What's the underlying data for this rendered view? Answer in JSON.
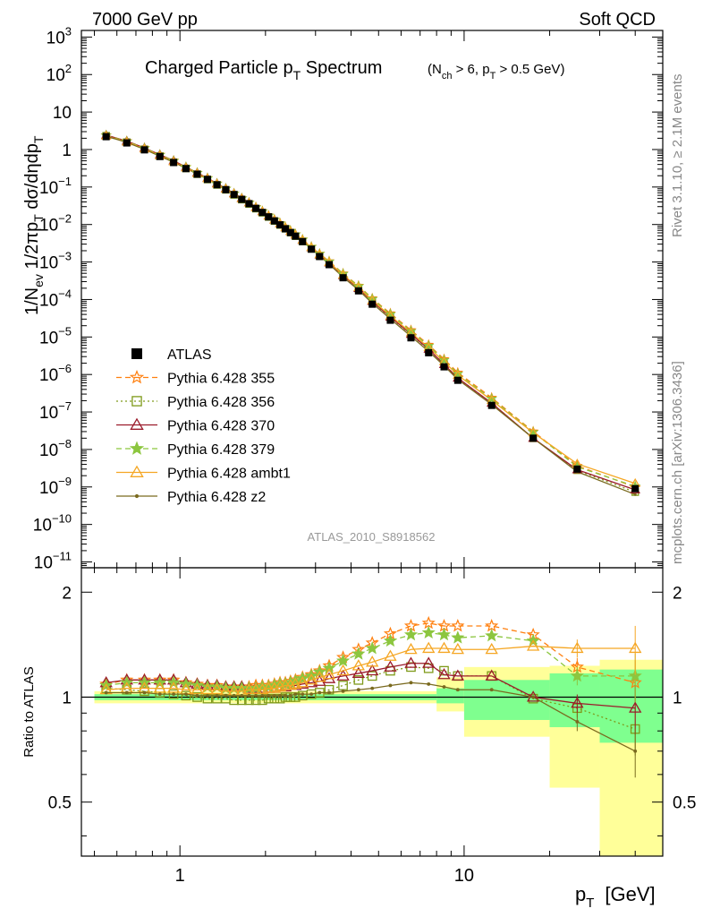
{
  "header": {
    "left": "7000 GeV pp",
    "right": "Soft QCD"
  },
  "side": {
    "rivet": "Rivet 3.1.10, ≥ 2.1M events",
    "mcplots": "mcplots.cern.ch [arXiv:1306.3436]"
  },
  "analysis_id": "ATLAS_2010_S8918562",
  "colors": {
    "ATLAS": "#000000",
    "p355": "#ff7f0e",
    "p356": "#7f9a1a",
    "p370": "#9b1b2b",
    "p379": "#8cc63f",
    "ambt1": "#f5a623",
    "z2": "#7a6a1f",
    "band_yellow": "#ffff99",
    "band_green": "#7fff8f"
  },
  "chart_data": [
    {
      "type": "line",
      "title": "Charged Particle p_T Spectrum",
      "title_main": "Charged Particle p",
      "title_sub": "T",
      "title_tail": " Spectrum",
      "title_cut": "(N_ch > 6, p_T > 0.5 GeV)",
      "ylabel": "1/N_ev 1/2πp_T dσ/dηdp_T",
      "xscale": "log",
      "yscale": "log",
      "xlim": [
        0.45,
        50
      ],
      "ylim": [
        7e-12,
        1500
      ],
      "yticklabels": [
        {
          "v": 1000.0,
          "m": "10",
          "e": "3"
        },
        {
          "v": 100.0,
          "m": "10",
          "e": "2"
        },
        {
          "v": 10.0,
          "m": "10",
          "e": ""
        },
        {
          "v": 1,
          "m": "1",
          "e": ""
        },
        {
          "v": 0.1,
          "m": "10",
          "e": "−1"
        },
        {
          "v": 0.01,
          "m": "10",
          "e": "−2"
        },
        {
          "v": 0.001,
          "m": "10",
          "e": "−3"
        },
        {
          "v": 0.0001,
          "m": "10",
          "e": "−4"
        },
        {
          "v": 1e-05,
          "m": "10",
          "e": "−5"
        },
        {
          "v": 1e-06,
          "m": "10",
          "e": "−6"
        },
        {
          "v": 1e-07,
          "m": "10",
          "e": "−7"
        },
        {
          "v": 1e-08,
          "m": "10",
          "e": "−8"
        },
        {
          "v": 1e-09,
          "m": "10",
          "e": "−9"
        },
        {
          "v": 1e-10,
          "m": "10",
          "e": "−10"
        },
        {
          "v": 1e-11,
          "m": "10",
          "e": "−11"
        }
      ],
      "x": [
        0.55,
        0.65,
        0.75,
        0.85,
        0.95,
        1.05,
        1.15,
        1.25,
        1.35,
        1.45,
        1.55,
        1.65,
        1.75,
        1.85,
        1.95,
        2.05,
        2.15,
        2.25,
        2.35,
        2.45,
        2.55,
        2.7,
        2.9,
        3.1,
        3.35,
        3.75,
        4.25,
        4.75,
        5.5,
        6.5,
        7.5,
        8.5,
        9.5,
        12.5,
        17.5,
        25,
        40
      ],
      "y_atlas": [
        2.2,
        1.5,
        0.98,
        0.65,
        0.45,
        0.31,
        0.22,
        0.16,
        0.115,
        0.085,
        0.063,
        0.047,
        0.036,
        0.027,
        0.021,
        0.016,
        0.0125,
        0.0098,
        0.0077,
        0.0061,
        0.0049,
        0.0035,
        0.0022,
        0.0014,
        0.00085,
        0.00038,
        0.00017,
        7.5e-05,
        2.8e-05,
        9.5e-06,
        3.8e-06,
        1.6e-06,
        7e-07,
        1.5e-07,
        2e-08,
        3e-09,
        9e-10
      ],
      "legend": [
        {
          "label": "ATLAS",
          "key": "ATLAS"
        },
        {
          "label": "Pythia 6.428 355",
          "key": "p355"
        },
        {
          "label": "Pythia 6.428 356",
          "key": "p356"
        },
        {
          "label": "Pythia 6.428 370",
          "key": "p370"
        },
        {
          "label": "Pythia 6.428 379",
          "key": "p379"
        },
        {
          "label": "Pythia 6.428 ambt1",
          "key": "ambt1"
        },
        {
          "label": "Pythia 6.428 z2",
          "key": "z2"
        }
      ]
    },
    {
      "type": "line",
      "ylabel": "Ratio to ATLAS",
      "xlabel": "p_T [GeV]",
      "xlabel_main": "p",
      "xlabel_sub": "T",
      "xlabel_unit": "[GeV]",
      "xscale": "log",
      "xlim": [
        0.45,
        50
      ],
      "ylim": [
        0.35,
        2.35
      ],
      "yscale": "log",
      "xticklabels": [
        {
          "v": 1,
          "t": "1"
        },
        {
          "v": 10,
          "t": "10"
        }
      ],
      "yticklabels": [
        {
          "v": 2,
          "t": "2"
        },
        {
          "v": 1,
          "t": "1"
        },
        {
          "v": 0.5,
          "t": "0.5"
        }
      ],
      "band_bins": [
        0.5,
        8,
        10,
        20,
        30,
        50
      ],
      "band_yellow": [
        [
          0.96,
          1.04
        ],
        [
          0.91,
          1.14
        ],
        [
          0.77,
          1.22
        ],
        [
          0.55,
          1.23
        ],
        [
          0.35,
          1.28
        ]
      ],
      "band_green": [
        [
          0.98,
          1.02
        ],
        [
          0.96,
          1.06
        ],
        [
          0.86,
          1.12
        ],
        [
          0.82,
          1.17
        ],
        [
          0.74,
          1.2
        ]
      ],
      "series": [
        {
          "name": "Pythia 6.428 355",
          "key": "p355",
          "marker": "star_open",
          "dash": "6,4",
          "x": [
            0.55,
            0.65,
            0.75,
            0.85,
            0.95,
            1.05,
            1.15,
            1.25,
            1.35,
            1.45,
            1.55,
            1.65,
            1.75,
            1.85,
            1.95,
            2.05,
            2.15,
            2.25,
            2.35,
            2.45,
            2.55,
            2.7,
            2.9,
            3.1,
            3.35,
            3.75,
            4.25,
            4.75,
            5.5,
            6.5,
            7.5,
            8.5,
            9.5,
            12.5,
            17.5,
            25,
            40
          ],
          "values": [
            1.09,
            1.12,
            1.12,
            1.12,
            1.12,
            1.1,
            1.09,
            1.08,
            1.08,
            1.07,
            1.07,
            1.07,
            1.07,
            1.08,
            1.08,
            1.08,
            1.09,
            1.1,
            1.1,
            1.11,
            1.12,
            1.14,
            1.16,
            1.19,
            1.23,
            1.3,
            1.37,
            1.43,
            1.52,
            1.6,
            1.63,
            1.6,
            1.6,
            1.6,
            1.51,
            1.22,
            1.1
          ]
        },
        {
          "name": "Pythia 6.428 356",
          "key": "p356",
          "marker": "square_open",
          "dash": "2,3",
          "x": [
            0.55,
            0.65,
            0.75,
            0.85,
            0.95,
            1.05,
            1.15,
            1.25,
            1.35,
            1.45,
            1.55,
            1.65,
            1.75,
            1.85,
            1.95,
            2.05,
            2.15,
            2.25,
            2.35,
            2.45,
            2.55,
            2.7,
            2.9,
            3.1,
            3.35,
            3.75,
            4.25,
            4.75,
            5.5,
            6.5,
            7.5,
            8.5,
            9.5,
            12.5,
            17.5,
            25,
            40
          ],
          "values": [
            1.06,
            1.05,
            1.04,
            1.03,
            1.02,
            1.01,
            1.0,
            0.99,
            0.99,
            0.99,
            0.98,
            0.98,
            0.98,
            0.98,
            0.98,
            0.99,
            0.99,
            0.99,
            1.0,
            1.0,
            1.0,
            1.01,
            1.02,
            1.03,
            1.05,
            1.08,
            1.12,
            1.15,
            1.19,
            1.22,
            1.21,
            1.19,
            1.15,
            1.15,
            0.99,
            0.93,
            0.81
          ]
        },
        {
          "name": "Pythia 6.428 370",
          "key": "p370",
          "marker": "triangle_open",
          "dash": "",
          "x": [
            0.55,
            0.65,
            0.75,
            0.85,
            0.95,
            1.05,
            1.15,
            1.25,
            1.35,
            1.45,
            1.55,
            1.65,
            1.75,
            1.85,
            1.95,
            2.05,
            2.15,
            2.25,
            2.35,
            2.45,
            2.55,
            2.7,
            2.9,
            3.1,
            3.35,
            3.75,
            4.25,
            4.75,
            5.5,
            6.5,
            7.5,
            8.5,
            9.5,
            12.5,
            17.5,
            25,
            40
          ],
          "values": [
            1.1,
            1.12,
            1.12,
            1.12,
            1.12,
            1.1,
            1.09,
            1.08,
            1.08,
            1.07,
            1.07,
            1.07,
            1.06,
            1.06,
            1.06,
            1.06,
            1.06,
            1.07,
            1.07,
            1.08,
            1.08,
            1.09,
            1.1,
            1.11,
            1.13,
            1.15,
            1.17,
            1.19,
            1.22,
            1.25,
            1.25,
            1.16,
            1.15,
            1.15,
            1.0,
            0.96,
            0.93
          ]
        },
        {
          "name": "Pythia 6.428 379",
          "key": "p379",
          "marker": "star_filled",
          "dash": "6,4",
          "x": [
            0.55,
            0.65,
            0.75,
            0.85,
            0.95,
            1.05,
            1.15,
            1.25,
            1.35,
            1.45,
            1.55,
            1.65,
            1.75,
            1.85,
            1.95,
            2.05,
            2.15,
            2.25,
            2.35,
            2.45,
            2.55,
            2.7,
            2.9,
            3.1,
            3.35,
            3.75,
            4.25,
            4.75,
            5.5,
            6.5,
            7.5,
            8.5,
            9.5,
            12.5,
            17.5,
            25,
            40
          ],
          "values": [
            1.08,
            1.1,
            1.1,
            1.1,
            1.1,
            1.09,
            1.08,
            1.07,
            1.07,
            1.06,
            1.06,
            1.06,
            1.06,
            1.06,
            1.07,
            1.07,
            1.08,
            1.09,
            1.09,
            1.1,
            1.11,
            1.13,
            1.15,
            1.18,
            1.21,
            1.27,
            1.33,
            1.38,
            1.45,
            1.51,
            1.53,
            1.51,
            1.48,
            1.5,
            1.45,
            1.15,
            1.15
          ]
        },
        {
          "name": "Pythia 6.428 ambt1",
          "key": "ambt1",
          "marker": "triangle_open",
          "dash": "",
          "x": [
            0.55,
            0.65,
            0.75,
            0.85,
            0.95,
            1.05,
            1.15,
            1.25,
            1.35,
            1.45,
            1.55,
            1.65,
            1.75,
            1.85,
            1.95,
            2.05,
            2.15,
            2.25,
            2.35,
            2.45,
            2.55,
            2.7,
            2.9,
            3.1,
            3.35,
            3.75,
            4.25,
            4.75,
            5.5,
            6.5,
            7.5,
            8.5,
            9.5,
            12.5,
            17.5,
            25,
            40
          ],
          "values": [
            1.05,
            1.06,
            1.06,
            1.06,
            1.06,
            1.05,
            1.05,
            1.05,
            1.05,
            1.04,
            1.04,
            1.04,
            1.05,
            1.05,
            1.05,
            1.06,
            1.06,
            1.07,
            1.08,
            1.08,
            1.09,
            1.1,
            1.12,
            1.14,
            1.16,
            1.19,
            1.23,
            1.26,
            1.31,
            1.37,
            1.38,
            1.38,
            1.37,
            1.37,
            1.4,
            1.38,
            1.38
          ]
        },
        {
          "name": "Pythia 6.428 z2",
          "key": "z2",
          "marker": "dot",
          "dash": "",
          "x": [
            0.55,
            0.65,
            0.75,
            0.85,
            0.95,
            1.05,
            1.15,
            1.25,
            1.35,
            1.45,
            1.55,
            1.65,
            1.75,
            1.85,
            1.95,
            2.05,
            2.15,
            2.25,
            2.35,
            2.45,
            2.55,
            2.7,
            2.9,
            3.1,
            3.35,
            3.75,
            4.25,
            4.75,
            5.5,
            6.5,
            7.5,
            8.5,
            9.5,
            12.5,
            17.5,
            25,
            40
          ],
          "values": [
            1.03,
            1.03,
            1.03,
            1.02,
            1.02,
            1.02,
            1.01,
            1.01,
            1.01,
            1.01,
            1.01,
            1.01,
            1.01,
            1.01,
            1.01,
            1.01,
            1.01,
            1.01,
            1.01,
            1.01,
            1.02,
            1.02,
            1.02,
            1.03,
            1.03,
            1.04,
            1.05,
            1.06,
            1.08,
            1.1,
            1.09,
            1.07,
            1.05,
            1.05,
            1.0,
            0.85,
            0.7
          ]
        }
      ]
    }
  ]
}
